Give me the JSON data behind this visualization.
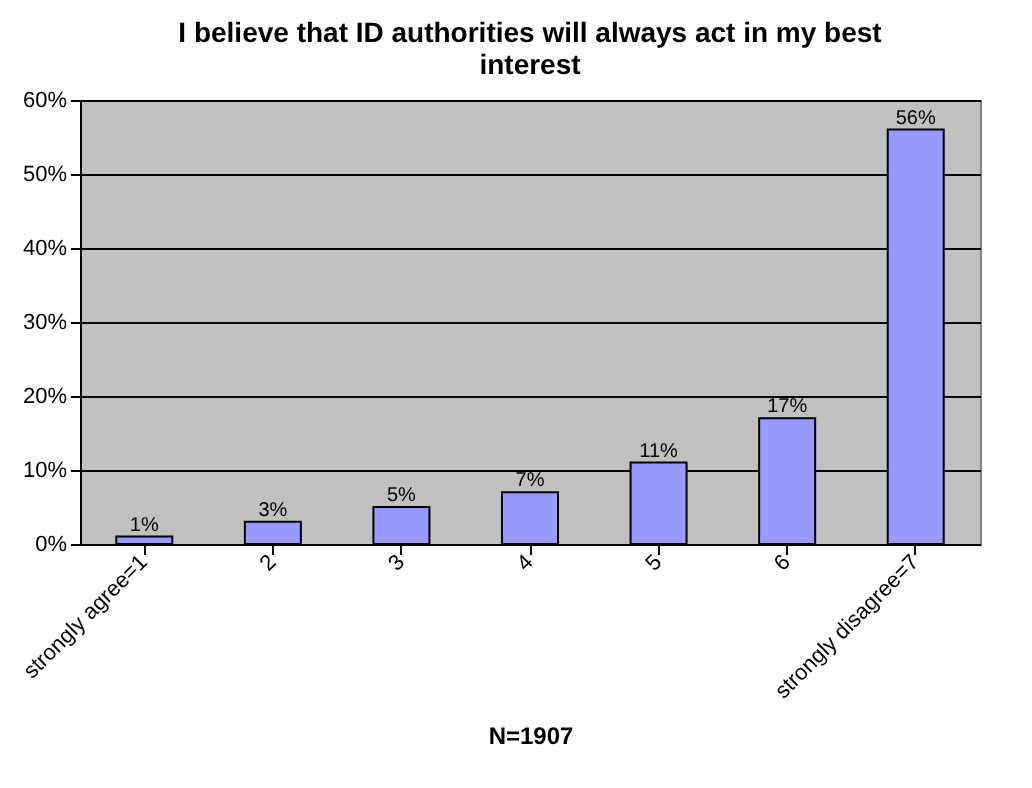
{
  "chart_data": {
    "type": "bar",
    "title": "I believe that ID authorities will always act in my best interest",
    "xlabel": "N=1907",
    "categories": [
      "strongly agree=1",
      "2",
      "3",
      "4",
      "5",
      "6",
      "strongly disagree=7"
    ],
    "values": [
      1,
      3,
      5,
      7,
      11,
      17,
      56
    ],
    "value_labels": [
      "1%",
      "3%",
      "5%",
      "7%",
      "11%",
      "17%",
      "56%"
    ],
    "color": "#9999ff",
    "ylim": [
      0,
      60
    ],
    "yticks": [
      {
        "value": 0,
        "label": "0%"
      },
      {
        "value": 10,
        "label": "10%"
      },
      {
        "value": 20,
        "label": "20%"
      },
      {
        "value": 30,
        "label": "30%"
      },
      {
        "value": 40,
        "label": "40%"
      },
      {
        "value": 50,
        "label": "50%"
      },
      {
        "value": 60,
        "label": "60%"
      }
    ],
    "grid": "y"
  }
}
